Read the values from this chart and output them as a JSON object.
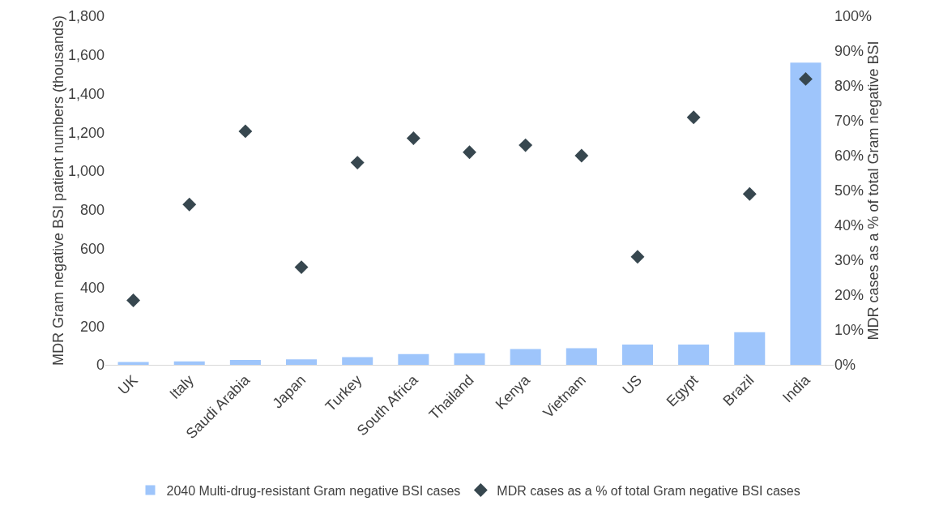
{
  "chart_data": {
    "type": "bar",
    "ylabel": "MDR Gram negative BSI patient numbers (thousands)",
    "y2label": "MDR cases as a % of total Gram negative BSI",
    "categories": [
      "UK",
      "Italy",
      "Saudi Arabia",
      "Japan",
      "Turkey",
      "South Africa",
      "Thailand",
      "Kenya",
      "Vietnam",
      "US",
      "Egypt",
      "Brazil",
      "India"
    ],
    "series": [
      {
        "name": "2040 Multi-drug-resistant Gram negative BSI cases",
        "color": "#9ec5fb",
        "values": [
          15,
          18,
          25,
          28,
          40,
          55,
          60,
          82,
          86,
          105,
          105,
          168,
          1560
        ]
      },
      {
        "name": "MDR cases as a % of total Gram negative BSI cases",
        "type": "scatter",
        "axis": "y2",
        "marker": "diamond",
        "color": "#37474f",
        "values": [
          18.5,
          46,
          67,
          28,
          58,
          65,
          61,
          63,
          60,
          31,
          71,
          49,
          82
        ]
      }
    ],
    "ylim": [
      0,
      1800
    ],
    "yticks": [
      0,
      200,
      400,
      600,
      800,
      {
        "value": 1000,
        "label": "1,000"
      },
      {
        "value": 1200,
        "label": "1,200"
      },
      {
        "value": 1400,
        "label": "1,400"
      },
      {
        "value": 1600,
        "label": "1,600"
      },
      {
        "value": 1800,
        "label": "1,800"
      }
    ],
    "y2lim": [
      0,
      100
    ],
    "y2ticks": [
      {
        "value": 0,
        "label": "0%"
      },
      {
        "value": 10,
        "label": "10%"
      },
      {
        "value": 20,
        "label": "20%"
      },
      {
        "value": 30,
        "label": "30%"
      },
      {
        "value": 40,
        "label": "40%"
      },
      {
        "value": 50,
        "label": "50%"
      },
      {
        "value": 60,
        "label": "60%"
      },
      {
        "value": 70,
        "label": "70%"
      },
      {
        "value": 80,
        "label": "80%"
      },
      {
        "value": 90,
        "label": "90%"
      },
      {
        "value": 100,
        "label": "100%"
      }
    ],
    "grid": false,
    "legend": "bottom"
  }
}
